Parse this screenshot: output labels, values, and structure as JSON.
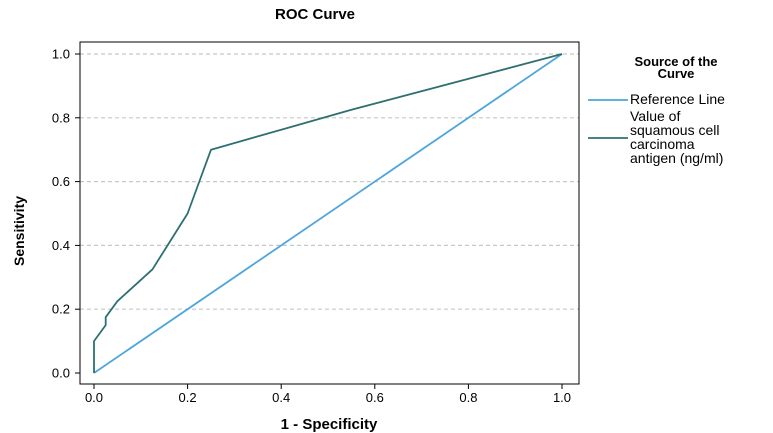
{
  "chart_data": {
    "type": "line",
    "title": "ROC Curve",
    "xlabel": "1 - Specificity",
    "ylabel": "Sensitivity",
    "xlim": [
      0,
      1
    ],
    "ylim": [
      0,
      1
    ],
    "x_ticks": [
      "0.0",
      "0.2",
      "0.4",
      "0.6",
      "0.8",
      "1.0"
    ],
    "y_ticks": [
      "0.0",
      "0.2",
      "0.4",
      "0.6",
      "0.8",
      "1.0"
    ],
    "grid": "horizontal-dashed",
    "legend": {
      "title_lines": [
        "Source of the",
        "Curve"
      ],
      "placement": "right",
      "entries": [
        {
          "label_lines": [
            "Reference Line"
          ],
          "color": "#4ea6dc"
        },
        {
          "label_lines": [
            "Value of",
            "squamous cell",
            "carcinoma",
            "antigen (ng/ml)"
          ],
          "color": "#2e7070"
        }
      ]
    },
    "series": [
      {
        "name": "Reference Line",
        "color": "#4ea6dc",
        "x": [
          0,
          1
        ],
        "y": [
          0,
          1
        ]
      },
      {
        "name": "Value of squamous cell carcinoma antigen (ng/ml)",
        "color": "#2e7070",
        "x": [
          0,
          0,
          0.025,
          0.025,
          0.05,
          0.125,
          0.2,
          0.25,
          0.55,
          1.0
        ],
        "y": [
          0,
          0.1,
          0.15,
          0.175,
          0.225,
          0.325,
          0.5,
          0.7,
          0.825,
          1.0
        ]
      }
    ]
  }
}
